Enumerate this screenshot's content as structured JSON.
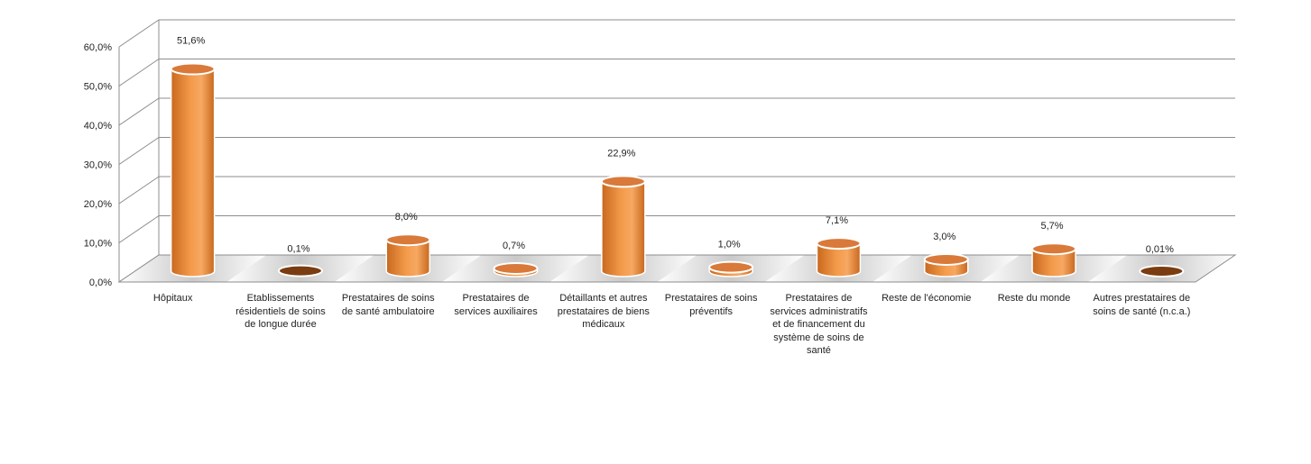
{
  "chart_data": {
    "type": "bar",
    "style": "3d-cylinder",
    "title": "",
    "xlabel": "",
    "ylabel": "",
    "ylim": [
      0,
      60
    ],
    "y_ticks": [
      0,
      10,
      20,
      30,
      40,
      50,
      60
    ],
    "y_tick_labels": [
      "0,0%",
      "10,0%",
      "20,0%",
      "30,0%",
      "40,0%",
      "50,0%",
      "60,0%"
    ],
    "grid": true,
    "legend": "none",
    "categories": [
      "Hôpitaux",
      "Etablissements résidentiels de soins de longue durée",
      "Prestataires de soins de santé ambulatoire",
      "Prestataires de services auxiliaires",
      "Détaillants et autres prestataires de biens médicaux",
      "Prestataires de soins préventifs",
      "Prestataires de services administratifs et de financement du système de soins de santé",
      "Reste de l'économie",
      "Reste du monde",
      "Autres prestataires de soins de santé (n.c.a.)"
    ],
    "values": [
      51.6,
      0.1,
      8.0,
      0.7,
      22.9,
      1.0,
      7.1,
      3.0,
      5.7,
      0.01
    ],
    "data_labels": [
      "51,6%",
      "0,1%",
      "8,0%",
      "0,7%",
      "22,9%",
      "1,0%",
      "7,1%",
      "3,0%",
      "5,7%",
      "0,01%"
    ],
    "colors": {
      "bar": "#f39a4a",
      "bar_dark": "#c8681e",
      "bar_top": "#d9793a",
      "tiny_bar_top": "#7a3c10",
      "grid": "#8c8c8c",
      "floor": "#c8c8c8"
    }
  }
}
